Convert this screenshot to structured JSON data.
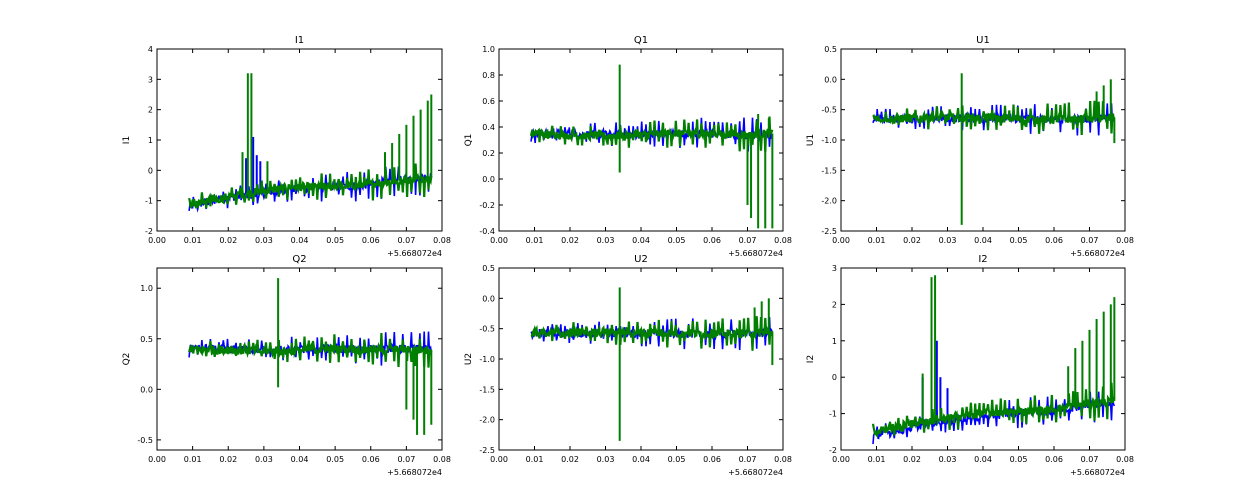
{
  "chart_data": [
    {
      "type": "line",
      "title": "I1",
      "xlabel": "",
      "ylabel": "I1",
      "xlim": [
        0.0,
        0.08
      ],
      "ylim": [
        -2,
        4
      ],
      "xticks": [
        "0.00",
        "0.01",
        "0.02",
        "0.03",
        "0.04",
        "0.05",
        "0.06",
        "0.07",
        "0.08"
      ],
      "yticks": [
        "-2",
        "-1",
        "0",
        "1",
        "2",
        "3",
        "4"
      ],
      "ytick_values": [
        -2,
        -1,
        0,
        1,
        2,
        3,
        4
      ],
      "offset_label": "+5.668072e4",
      "series": [
        {
          "name": "blue",
          "color": "#0000ff",
          "x_range": [
            0.009,
            0.077
          ],
          "baseline": [
            -1.2,
            -0.9,
            -0.8,
            -0.6,
            -0.55,
            -0.5,
            -0.3,
            -0.2
          ],
          "spikes": [
            {
              "x": 0.027,
              "value": 1.1
            },
            {
              "x": 0.028,
              "value": 0.5
            },
            {
              "x": 0.029,
              "value": 0.3
            },
            {
              "x": 0.025,
              "value": 0.4
            }
          ]
        },
        {
          "name": "green",
          "color": "#007f00",
          "x_range": [
            0.009,
            0.077
          ],
          "baseline": [
            -1.1,
            -0.9,
            -0.7,
            -0.55,
            -0.55,
            -0.5,
            -0.35,
            -0.25
          ],
          "spikes": [
            {
              "x": 0.0255,
              "value": 3.2
            },
            {
              "x": 0.0265,
              "value": 3.2
            },
            {
              "x": 0.024,
              "value": 0.6
            },
            {
              "x": 0.031,
              "value": 0.3
            },
            {
              "x": 0.064,
              "value": 0.6
            },
            {
              "x": 0.066,
              "value": 0.9
            },
            {
              "x": 0.068,
              "value": 1.2
            },
            {
              "x": 0.07,
              "value": 1.5
            },
            {
              "x": 0.072,
              "value": 1.8
            },
            {
              "x": 0.074,
              "value": 2.0
            },
            {
              "x": 0.076,
              "value": 2.3
            },
            {
              "x": 0.077,
              "value": 2.5
            }
          ]
        }
      ]
    },
    {
      "type": "line",
      "title": "Q1",
      "xlabel": "",
      "ylabel": "Q1",
      "xlim": [
        0.0,
        0.08
      ],
      "ylim": [
        -0.4,
        1.0
      ],
      "xticks": [
        "0.00",
        "0.01",
        "0.02",
        "0.03",
        "0.04",
        "0.05",
        "0.06",
        "0.07",
        "0.08"
      ],
      "yticks": [
        "-0.4",
        "-0.2",
        "0.0",
        "0.2",
        "0.4",
        "0.6",
        "0.8",
        "1.0"
      ],
      "ytick_values": [
        -0.4,
        -0.2,
        0.0,
        0.2,
        0.4,
        0.6,
        0.8,
        1.0
      ],
      "offset_label": "+5.668072e4",
      "series": [
        {
          "name": "blue",
          "color": "#0000ff",
          "x_range": [
            0.009,
            0.077
          ],
          "baseline": [
            0.35,
            0.35,
            0.34,
            0.34,
            0.35,
            0.35,
            0.34,
            0.34
          ],
          "spikes": []
        },
        {
          "name": "green",
          "color": "#007f00",
          "x_range": [
            0.009,
            0.077
          ],
          "baseline": [
            0.35,
            0.34,
            0.33,
            0.34,
            0.35,
            0.35,
            0.34,
            0.35
          ],
          "spikes": [
            {
              "x": 0.034,
              "value": 0.88
            },
            {
              "x": 0.034,
              "value": 0.05
            },
            {
              "x": 0.07,
              "value": -0.2
            },
            {
              "x": 0.071,
              "value": -0.3
            },
            {
              "x": 0.073,
              "value": -0.38
            },
            {
              "x": 0.075,
              "value": -0.38
            },
            {
              "x": 0.077,
              "value": -0.38
            },
            {
              "x": 0.073,
              "value": 0.5
            },
            {
              "x": 0.076,
              "value": 0.47
            }
          ]
        }
      ]
    },
    {
      "type": "line",
      "title": "U1",
      "xlabel": "",
      "ylabel": "U1",
      "xlim": [
        0.0,
        0.08
      ],
      "ylim": [
        -2.5,
        0.5
      ],
      "xticks": [
        "0.00",
        "0.01",
        "0.02",
        "0.03",
        "0.04",
        "0.05",
        "0.06",
        "0.07",
        "0.08"
      ],
      "yticks": [
        "-2.5",
        "-2.0",
        "-1.5",
        "-1.0",
        "-0.5",
        "0.0",
        "0.5"
      ],
      "ytick_values": [
        -2.5,
        -2.0,
        -1.5,
        -1.0,
        -0.5,
        0.0,
        0.5
      ],
      "offset_label": "+5.668072e4",
      "series": [
        {
          "name": "blue",
          "color": "#0000ff",
          "x_range": [
            0.009,
            0.077
          ],
          "baseline": [
            -0.65,
            -0.65,
            -0.64,
            -0.64,
            -0.65,
            -0.66,
            -0.65,
            -0.64
          ],
          "spikes": []
        },
        {
          "name": "green",
          "color": "#007f00",
          "x_range": [
            0.009,
            0.077
          ],
          "baseline": [
            -0.64,
            -0.64,
            -0.63,
            -0.63,
            -0.65,
            -0.66,
            -0.65,
            -0.63
          ],
          "spikes": [
            {
              "x": 0.034,
              "value": 0.1
            },
            {
              "x": 0.034,
              "value": -2.4
            },
            {
              "x": 0.072,
              "value": -0.2
            },
            {
              "x": 0.074,
              "value": -0.1
            },
            {
              "x": 0.076,
              "value": 0.0
            },
            {
              "x": 0.077,
              "value": -1.05
            }
          ]
        }
      ]
    },
    {
      "type": "line",
      "title": "Q2",
      "xlabel": "",
      "ylabel": "Q2",
      "xlim": [
        0.0,
        0.08
      ],
      "ylim": [
        -0.6,
        1.2
      ],
      "xticks": [
        "0.00",
        "0.01",
        "0.02",
        "0.03",
        "0.04",
        "0.05",
        "0.06",
        "0.07",
        "0.08"
      ],
      "yticks": [
        "-0.5",
        "0.0",
        "0.5",
        "1.0"
      ],
      "ytick_values": [
        -0.5,
        0.0,
        0.5,
        1.0
      ],
      "offset_label": "+5.668072e4",
      "series": [
        {
          "name": "blue",
          "color": "#0000ff",
          "x_range": [
            0.009,
            0.077
          ],
          "baseline": [
            0.4,
            0.4,
            0.39,
            0.39,
            0.4,
            0.4,
            0.4,
            0.4
          ],
          "spikes": []
        },
        {
          "name": "green",
          "color": "#007f00",
          "x_range": [
            0.009,
            0.077
          ],
          "baseline": [
            0.4,
            0.39,
            0.38,
            0.38,
            0.4,
            0.4,
            0.39,
            0.39
          ],
          "spikes": [
            {
              "x": 0.034,
              "value": 1.1
            },
            {
              "x": 0.034,
              "value": 0.02
            },
            {
              "x": 0.07,
              "value": -0.2
            },
            {
              "x": 0.072,
              "value": -0.3
            },
            {
              "x": 0.073,
              "value": -0.45
            },
            {
              "x": 0.075,
              "value": -0.45
            },
            {
              "x": 0.077,
              "value": -0.35
            }
          ]
        }
      ]
    },
    {
      "type": "line",
      "title": "U2",
      "xlabel": "",
      "ylabel": "U2",
      "xlim": [
        0.0,
        0.08
      ],
      "ylim": [
        -2.5,
        0.5
      ],
      "xticks": [
        "0.00",
        "0.01",
        "0.02",
        "0.03",
        "0.04",
        "0.05",
        "0.06",
        "0.07",
        "0.08"
      ],
      "yticks": [
        "-2.5",
        "-2.0",
        "-1.5",
        "-1.0",
        "-0.5",
        "0.0",
        "0.5"
      ],
      "ytick_values": [
        -2.5,
        -2.0,
        -1.5,
        -1.0,
        -0.5,
        0.0,
        0.5
      ],
      "offset_label": "+5.668072e4",
      "series": [
        {
          "name": "blue",
          "color": "#0000ff",
          "x_range": [
            0.009,
            0.077
          ],
          "baseline": [
            -0.58,
            -0.58,
            -0.58,
            -0.58,
            -0.58,
            -0.59,
            -0.58,
            -0.57
          ],
          "spikes": []
        },
        {
          "name": "green",
          "color": "#007f00",
          "x_range": [
            0.009,
            0.077
          ],
          "baseline": [
            -0.57,
            -0.57,
            -0.56,
            -0.56,
            -0.57,
            -0.58,
            -0.58,
            -0.56
          ],
          "spikes": [
            {
              "x": 0.034,
              "value": 0.18
            },
            {
              "x": 0.034,
              "value": -2.35
            },
            {
              "x": 0.072,
              "value": -0.15
            },
            {
              "x": 0.074,
              "value": -0.05
            },
            {
              "x": 0.076,
              "value": 0.0
            },
            {
              "x": 0.077,
              "value": -1.1
            }
          ]
        }
      ]
    },
    {
      "type": "line",
      "title": "I2",
      "xlabel": "",
      "ylabel": "I2",
      "xlim": [
        0.0,
        0.08
      ],
      "ylim": [
        -2,
        3
      ],
      "xticks": [
        "0.00",
        "0.01",
        "0.02",
        "0.03",
        "0.04",
        "0.05",
        "0.06",
        "0.07",
        "0.08"
      ],
      "yticks": [
        "-2",
        "-1",
        "0",
        "1",
        "2",
        "3"
      ],
      "ytick_values": [
        -2,
        -1,
        0,
        1,
        2,
        3
      ],
      "offset_label": "+5.668072e4",
      "series": [
        {
          "name": "blue",
          "color": "#0000ff",
          "x_range": [
            0.009,
            0.077
          ],
          "baseline": [
            -1.6,
            -1.4,
            -1.2,
            -1.1,
            -1.0,
            -0.95,
            -0.8,
            -0.7
          ],
          "spikes": [
            {
              "x": 0.027,
              "value": 1.0
            },
            {
              "x": 0.028,
              "value": 0.0
            },
            {
              "x": 0.023,
              "value": 0.0
            },
            {
              "x": 0.03,
              "value": -0.3
            }
          ]
        },
        {
          "name": "green",
          "color": "#007f00",
          "x_range": [
            0.009,
            0.077
          ],
          "baseline": [
            -1.5,
            -1.3,
            -1.15,
            -1.0,
            -0.95,
            -0.9,
            -0.75,
            -0.65
          ],
          "spikes": [
            {
              "x": 0.0255,
              "value": 2.75
            },
            {
              "x": 0.0265,
              "value": 2.8
            },
            {
              "x": 0.023,
              "value": 0.1
            },
            {
              "x": 0.064,
              "value": 0.3
            },
            {
              "x": 0.066,
              "value": 0.8
            },
            {
              "x": 0.068,
              "value": 1.0
            },
            {
              "x": 0.07,
              "value": 1.3
            },
            {
              "x": 0.072,
              "value": 1.6
            },
            {
              "x": 0.074,
              "value": 1.8
            },
            {
              "x": 0.076,
              "value": 2.0
            },
            {
              "x": 0.077,
              "value": 2.2
            }
          ]
        }
      ]
    }
  ]
}
